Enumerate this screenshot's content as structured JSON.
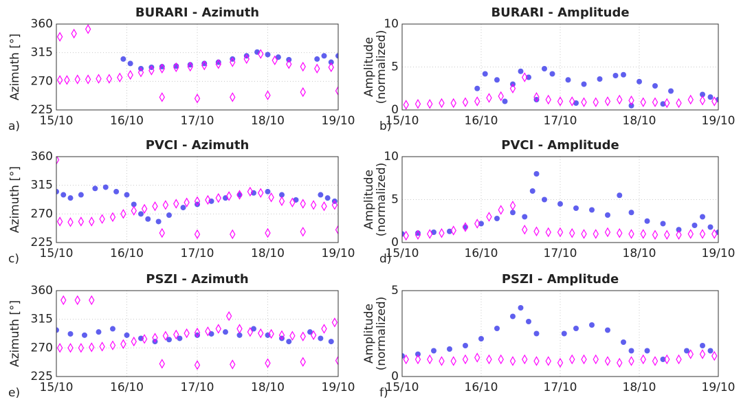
{
  "chart_data": [
    {
      "type": "scatter",
      "title": "BURARI - Azimuth",
      "label": "a)",
      "ylabel": [
        "Azimuth [°]"
      ],
      "xlim": [
        15,
        19
      ],
      "ylim": [
        225,
        360
      ],
      "grid": true,
      "xticks": [
        {
          "value": 15,
          "label": "15/10"
        },
        {
          "value": 16,
          "label": "16/10"
        },
        {
          "value": 17,
          "label": "17/10"
        },
        {
          "value": 18,
          "label": "18/10"
        },
        {
          "value": 19,
          "label": "19/10"
        }
      ],
      "yticks": [
        225,
        270,
        315,
        360
      ],
      "series": [
        {
          "color": "#2a2ae8",
          "marker": "circle",
          "x": [
            15.95,
            16.05,
            16.2,
            16.35,
            16.5,
            16.7,
            16.9,
            17.1,
            17.3,
            17.5,
            17.7,
            17.85,
            18.0,
            18.15,
            18.3,
            18.7,
            18.8,
            18.9,
            19.0
          ],
          "y": [
            305,
            298,
            290,
            292,
            293,
            294,
            296,
            298,
            300,
            305,
            310,
            316,
            312,
            308,
            304,
            305,
            310,
            300,
            310
          ]
        },
        {
          "color": "#ff00ff",
          "marker": "diamond",
          "x": [
            15.05,
            15.15,
            15.3,
            15.45,
            15.6,
            15.75,
            15.9,
            16.05,
            16.2,
            16.35,
            16.5,
            16.7,
            16.9,
            17.1,
            17.3,
            17.5,
            17.7,
            17.9,
            18.1,
            18.3,
            18.5,
            18.7,
            18.9,
            15.05,
            15.25,
            15.45,
            16.5,
            17.0,
            17.5,
            18.0,
            18.5,
            19.0
          ],
          "y": [
            272,
            272,
            273,
            273,
            274,
            274,
            276,
            280,
            284,
            287,
            290,
            292,
            293,
            295,
            297,
            300,
            305,
            313,
            303,
            297,
            293,
            290,
            292,
            340,
            345,
            352,
            245,
            243,
            245,
            248,
            253,
            255
          ]
        }
      ]
    },
    {
      "type": "scatter",
      "title": "BURARI - Amplitude",
      "label": "b)",
      "ylabel": [
        "Amplitude",
        "(normalized)"
      ],
      "xlim": [
        15,
        19
      ],
      "ylim": [
        0,
        10
      ],
      "grid": true,
      "xticks": [
        {
          "value": 15,
          "label": "15/10"
        },
        {
          "value": 16,
          "label": "16/10"
        },
        {
          "value": 17,
          "label": "17/10"
        },
        {
          "value": 18,
          "label": "18/10"
        },
        {
          "value": 19,
          "label": "19/10"
        }
      ],
      "yticks": [
        0,
        5,
        10
      ],
      "series": [
        {
          "color": "#2a2ae8",
          "marker": "circle",
          "x": [
            15.95,
            16.05,
            16.2,
            16.4,
            16.5,
            16.6,
            16.8,
            16.9,
            17.1,
            17.3,
            17.5,
            17.7,
            17.8,
            18.0,
            18.2,
            18.4,
            18.8,
            18.9,
            19.0,
            16.3,
            16.7,
            17.2,
            17.9,
            18.3
          ],
          "y": [
            2.5,
            4.2,
            3.5,
            3.0,
            4.5,
            3.8,
            4.8,
            4.2,
            3.5,
            3.0,
            3.6,
            4.0,
            4.1,
            3.3,
            2.8,
            2.2,
            1.8,
            1.5,
            1.2,
            1.0,
            1.2,
            0.8,
            0.5,
            0.7
          ]
        },
        {
          "color": "#ff00ff",
          "marker": "diamond",
          "x": [
            15.05,
            15.2,
            15.35,
            15.5,
            15.65,
            15.8,
            15.95,
            16.1,
            16.25,
            16.4,
            16.55,
            16.7,
            16.85,
            17.0,
            17.15,
            17.3,
            17.45,
            17.6,
            17.75,
            17.9,
            18.05,
            18.2,
            18.35,
            18.5,
            18.65,
            18.8,
            18.95
          ],
          "y": [
            0.6,
            0.7,
            0.7,
            0.8,
            0.8,
            0.9,
            1.0,
            1.4,
            1.6,
            2.5,
            3.8,
            1.5,
            1.2,
            1.0,
            1.0,
            0.9,
            0.9,
            1.0,
            1.2,
            1.1,
            0.9,
            0.9,
            0.8,
            0.8,
            1.2,
            1.1,
            1.0
          ]
        }
      ]
    },
    {
      "type": "scatter",
      "title": "PVCI - Azimuth",
      "label": "c)",
      "ylabel": [
        "Azimuth [°]"
      ],
      "xlim": [
        15,
        19
      ],
      "ylim": [
        225,
        360
      ],
      "grid": true,
      "xticks": [
        {
          "value": 15,
          "label": "15/10"
        },
        {
          "value": 16,
          "label": "16/10"
        },
        {
          "value": 17,
          "label": "17/10"
        },
        {
          "value": 18,
          "label": "18/10"
        },
        {
          "value": 19,
          "label": "19/10"
        }
      ],
      "yticks": [
        225,
        270,
        315,
        360
      ],
      "series": [
        {
          "color": "#2a2ae8",
          "marker": "circle",
          "x": [
            15.0,
            15.1,
            15.2,
            15.35,
            15.55,
            15.7,
            15.85,
            16.0,
            16.1,
            16.2,
            16.3,
            16.45,
            16.6,
            16.8,
            17.0,
            17.2,
            17.4,
            17.6,
            17.8,
            18.0,
            18.2,
            18.4,
            18.75,
            18.85,
            18.95
          ],
          "y": [
            305,
            300,
            295,
            300,
            310,
            312,
            305,
            300,
            285,
            270,
            262,
            258,
            268,
            280,
            285,
            290,
            295,
            300,
            303,
            305,
            300,
            292,
            300,
            295,
            290
          ]
        },
        {
          "color": "#ff00ff",
          "marker": "diamond",
          "x": [
            15.05,
            15.2,
            15.35,
            15.5,
            15.65,
            15.8,
            15.95,
            16.1,
            16.25,
            16.4,
            16.55,
            16.7,
            16.85,
            17.0,
            17.15,
            17.3,
            17.45,
            17.6,
            17.75,
            17.9,
            18.05,
            18.2,
            18.35,
            18.5,
            18.65,
            18.8,
            18.95,
            15.0,
            16.5,
            17.0,
            17.5,
            18.0,
            18.5,
            19.0
          ],
          "y": [
            258,
            257,
            258,
            258,
            262,
            265,
            270,
            275,
            278,
            282,
            284,
            286,
            288,
            290,
            292,
            295,
            298,
            300,
            305,
            303,
            296,
            290,
            288,
            286,
            284,
            282,
            284,
            355,
            240,
            238,
            238,
            240,
            242,
            245
          ]
        }
      ]
    },
    {
      "type": "scatter",
      "title": "PVCI - Amplitude",
      "label": "d)",
      "ylabel": [
        "Amplitude",
        "(normalized)"
      ],
      "xlim": [
        15,
        19
      ],
      "ylim": [
        0,
        10
      ],
      "grid": true,
      "xticks": [
        {
          "value": 15,
          "label": "15/10"
        },
        {
          "value": 16,
          "label": "16/10"
        },
        {
          "value": 17,
          "label": "17/10"
        },
        {
          "value": 18,
          "label": "18/10"
        },
        {
          "value": 19,
          "label": "19/10"
        }
      ],
      "yticks": [
        0,
        5,
        10
      ],
      "series": [
        {
          "color": "#2a2ae8",
          "marker": "circle",
          "x": [
            15.0,
            15.2,
            15.4,
            15.6,
            15.8,
            16.0,
            16.2,
            16.4,
            16.55,
            16.65,
            16.7,
            16.8,
            17.0,
            17.2,
            17.4,
            17.6,
            17.75,
            17.9,
            18.1,
            18.3,
            18.5,
            18.7,
            18.8,
            18.9,
            19.0
          ],
          "y": [
            1.0,
            1.1,
            1.2,
            1.3,
            1.8,
            2.2,
            2.8,
            3.5,
            3.0,
            6.0,
            8.0,
            5.0,
            4.5,
            4.0,
            3.8,
            3.2,
            5.5,
            3.5,
            2.5,
            2.2,
            1.5,
            2.0,
            3.0,
            1.8,
            1.2
          ]
        },
        {
          "color": "#ff00ff",
          "marker": "diamond",
          "x": [
            15.05,
            15.2,
            15.35,
            15.5,
            15.65,
            15.8,
            15.95,
            16.1,
            16.25,
            16.4,
            16.55,
            16.7,
            16.85,
            17.0,
            17.15,
            17.3,
            17.45,
            17.6,
            17.75,
            17.9,
            18.05,
            18.2,
            18.35,
            18.5,
            18.65,
            18.8,
            18.95
          ],
          "y": [
            0.8,
            0.9,
            1.0,
            1.1,
            1.4,
            1.8,
            2.2,
            3.0,
            3.8,
            4.3,
            1.5,
            1.3,
            1.2,
            1.2,
            1.1,
            1.0,
            1.0,
            1.2,
            1.1,
            1.0,
            1.0,
            0.9,
            0.9,
            0.9,
            1.0,
            1.0,
            1.0
          ]
        }
      ]
    },
    {
      "type": "scatter",
      "title": "PSZI - Azimuth",
      "label": "e)",
      "ylabel": [
        "Azimuth [°]"
      ],
      "xlim": [
        15,
        19
      ],
      "ylim": [
        225,
        360
      ],
      "grid": true,
      "xticks": [
        {
          "value": 15,
          "label": "15/10"
        },
        {
          "value": 16,
          "label": "16/10"
        },
        {
          "value": 17,
          "label": "17/10"
        },
        {
          "value": 18,
          "label": "18/10"
        },
        {
          "value": 19,
          "label": "19/10"
        }
      ],
      "yticks": [
        225,
        270,
        315,
        360
      ],
      "series": [
        {
          "color": "#2a2ae8",
          "marker": "circle",
          "x": [
            15.0,
            15.2,
            15.4,
            15.6,
            15.8,
            16.0,
            16.2,
            16.4,
            16.6,
            16.75,
            17.0,
            17.2,
            17.4,
            17.6,
            17.8,
            18.0,
            18.2,
            18.3,
            18.6,
            18.75,
            18.9
          ],
          "y": [
            298,
            292,
            290,
            295,
            300,
            290,
            285,
            280,
            283,
            285,
            290,
            292,
            295,
            290,
            300,
            290,
            285,
            280,
            295,
            285,
            280
          ]
        },
        {
          "color": "#ff00ff",
          "marker": "diamond",
          "x": [
            15.05,
            15.2,
            15.35,
            15.5,
            15.65,
            15.8,
            15.95,
            16.1,
            16.25,
            16.4,
            16.55,
            16.7,
            16.85,
            17.0,
            17.15,
            17.3,
            17.45,
            17.6,
            17.75,
            17.9,
            18.05,
            18.2,
            18.35,
            18.5,
            18.65,
            18.8,
            18.95,
            15.1,
            15.3,
            15.5,
            16.5,
            17.0,
            17.5,
            18.0,
            18.5,
            19.0
          ],
          "y": [
            270,
            270,
            270,
            271,
            272,
            274,
            276,
            280,
            284,
            286,
            289,
            291,
            293,
            294,
            296,
            300,
            320,
            300,
            295,
            293,
            292,
            290,
            289,
            288,
            290,
            300,
            310,
            345,
            345,
            345,
            245,
            243,
            244,
            246,
            248,
            250
          ]
        }
      ]
    },
    {
      "type": "scatter",
      "title": "PSZI - Amplitude",
      "label": "f)",
      "ylabel": [
        "Amplitude",
        "(normalized)"
      ],
      "xlim": [
        15,
        19
      ],
      "ylim": [
        0,
        5
      ],
      "grid": true,
      "xticks": [
        {
          "value": 15,
          "label": "15/10"
        },
        {
          "value": 16,
          "label": "16/10"
        },
        {
          "value": 17,
          "label": "17/10"
        },
        {
          "value": 18,
          "label": "18/10"
        },
        {
          "value": 19,
          "label": "19/10"
        }
      ],
      "yticks": [
        0,
        5
      ],
      "series": [
        {
          "color": "#2a2ae8",
          "marker": "circle",
          "x": [
            15.0,
            15.2,
            15.4,
            15.6,
            15.8,
            16.0,
            16.2,
            16.4,
            16.5,
            16.6,
            16.7,
            17.05,
            17.2,
            17.4,
            17.6,
            17.8,
            17.9,
            18.1,
            18.3,
            18.6,
            18.8,
            18.9
          ],
          "y": [
            1.2,
            1.3,
            1.5,
            1.6,
            1.8,
            2.2,
            2.8,
            3.5,
            4.0,
            3.2,
            2.5,
            2.5,
            2.8,
            3.0,
            2.7,
            2.0,
            1.5,
            1.5,
            1.0,
            1.5,
            1.8,
            1.5
          ]
        },
        {
          "color": "#ff00ff",
          "marker": "diamond",
          "x": [
            15.05,
            15.2,
            15.35,
            15.5,
            15.65,
            15.8,
            15.95,
            16.1,
            16.25,
            16.4,
            16.55,
            16.7,
            16.85,
            17.0,
            17.15,
            17.3,
            17.45,
            17.6,
            17.75,
            17.9,
            18.05,
            18.2,
            18.35,
            18.5,
            18.65,
            18.8,
            18.95
          ],
          "y": [
            1.0,
            1.0,
            1.0,
            0.9,
            0.9,
            1.0,
            1.1,
            1.0,
            1.0,
            0.9,
            1.0,
            0.9,
            0.9,
            0.8,
            1.0,
            1.0,
            1.0,
            0.9,
            0.8,
            0.9,
            1.0,
            0.9,
            1.0,
            1.0,
            1.3,
            1.3,
            1.2
          ]
        }
      ]
    }
  ]
}
